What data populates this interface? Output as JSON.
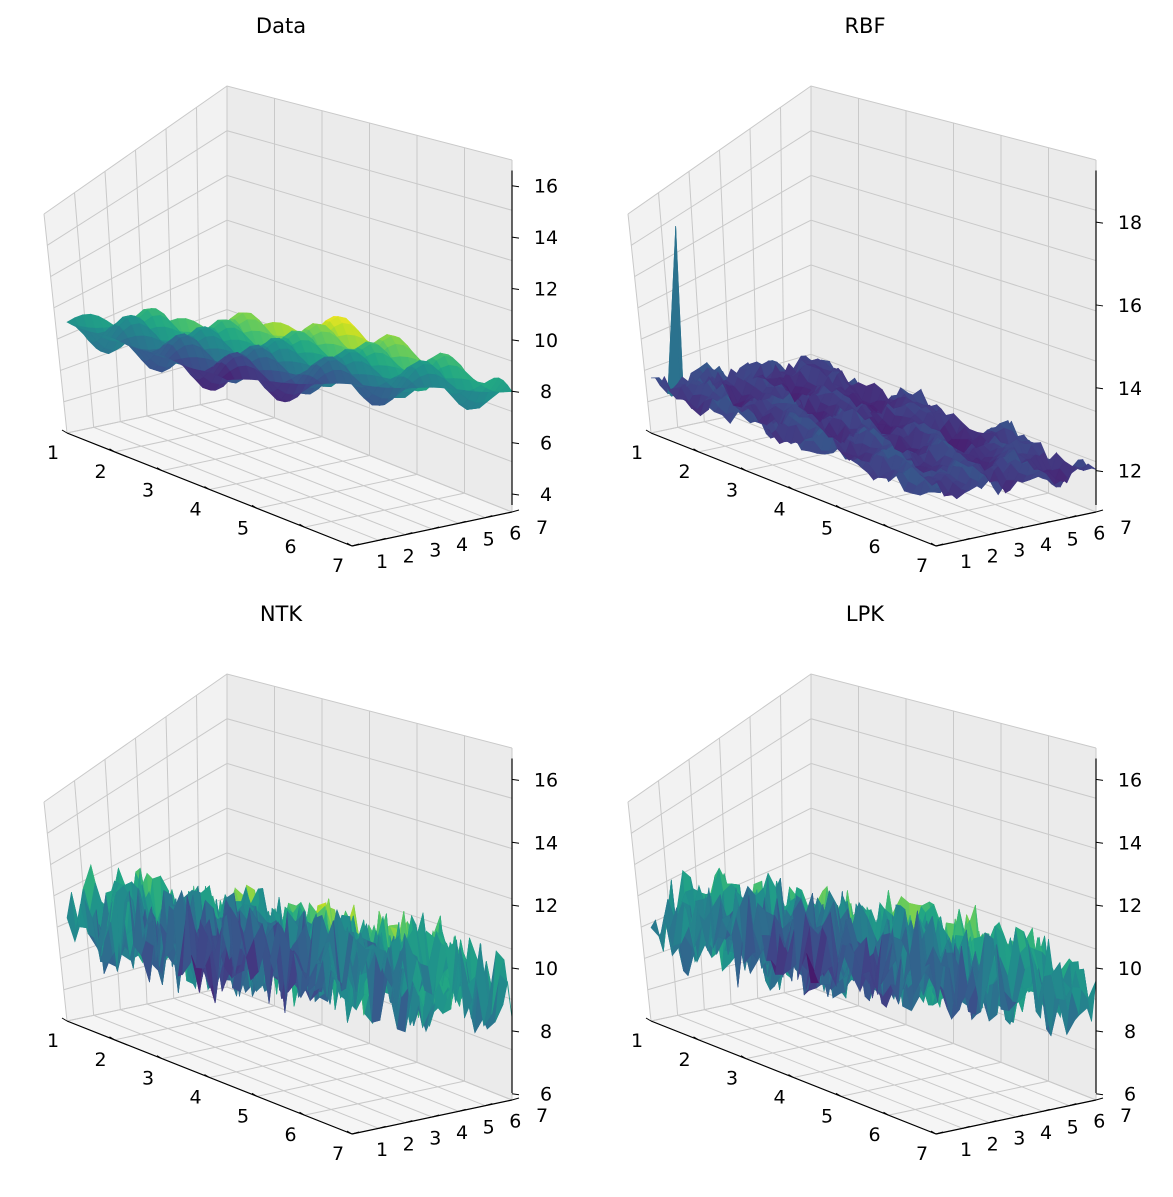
{
  "chart_data": [
    {
      "type": "surface3d",
      "title": "Data",
      "x_ticks": [
        "1",
        "2",
        "3",
        "4",
        "5",
        "6",
        "7"
      ],
      "y_ticks": [
        "1",
        "2",
        "3",
        "4",
        "5",
        "6",
        "7"
      ],
      "z_ticks": [
        "4",
        "6",
        "8",
        "10",
        "12",
        "14",
        "16"
      ],
      "xlim": [
        1,
        7
      ],
      "ylim": [
        1,
        7
      ],
      "zlim": [
        3.3,
        17
      ],
      "colormap": "viridis",
      "surface": {
        "base": 4.5,
        "slope_x": 1.05,
        "slope_y": 0.95,
        "amp": 1.5,
        "noise": 0
      },
      "grid": true
    },
    {
      "type": "surface3d",
      "title": "RBF",
      "x_ticks": [
        "1",
        "2",
        "3",
        "4",
        "5",
        "6",
        "7"
      ],
      "y_ticks": [
        "1",
        "2",
        "3",
        "4",
        "5",
        "6",
        "7"
      ],
      "z_ticks": [
        "12",
        "14",
        "16",
        "18"
      ],
      "xlim": [
        1,
        7
      ],
      "ylim": [
        1,
        7
      ],
      "zlim": [
        11,
        19.5
      ],
      "colormap": "viridis",
      "surface": {
        "base": 12.3,
        "slope_x": 0.05,
        "slope_y": 0.1,
        "amp": 0.7,
        "noise": 0.3,
        "peak": 19.2
      },
      "grid": true
    },
    {
      "type": "surface3d",
      "title": "NTK",
      "x_ticks": [
        "1",
        "2",
        "3",
        "4",
        "5",
        "6",
        "7"
      ],
      "y_ticks": [
        "1",
        "2",
        "3",
        "4",
        "5",
        "6",
        "7"
      ],
      "z_ticks": [
        "6",
        "8",
        "10",
        "12",
        "14",
        "16"
      ],
      "xlim": [
        1,
        7
      ],
      "ylim": [
        1,
        7
      ],
      "zlim": [
        5.8,
        17
      ],
      "colormap": "viridis",
      "surface": {
        "base": 8,
        "slope_x": 0.6,
        "slope_y": 0.55,
        "amp": 1.2,
        "noise": 2.2
      },
      "grid": true
    },
    {
      "type": "surface3d",
      "title": "LPK",
      "x_ticks": [
        "1",
        "2",
        "3",
        "4",
        "5",
        "6",
        "7"
      ],
      "y_ticks": [
        "1",
        "2",
        "3",
        "4",
        "5",
        "6",
        "7"
      ],
      "z_ticks": [
        "6",
        "8",
        "10",
        "12",
        "14",
        "16"
      ],
      "xlim": [
        1,
        7
      ],
      "ylim": [
        1,
        7
      ],
      "zlim": [
        5.8,
        17
      ],
      "colormap": "viridis",
      "surface": {
        "base": 8,
        "slope_x": 0.6,
        "slope_y": 0.55,
        "amp": 1.2,
        "noise": 2.1
      },
      "grid": true
    }
  ]
}
